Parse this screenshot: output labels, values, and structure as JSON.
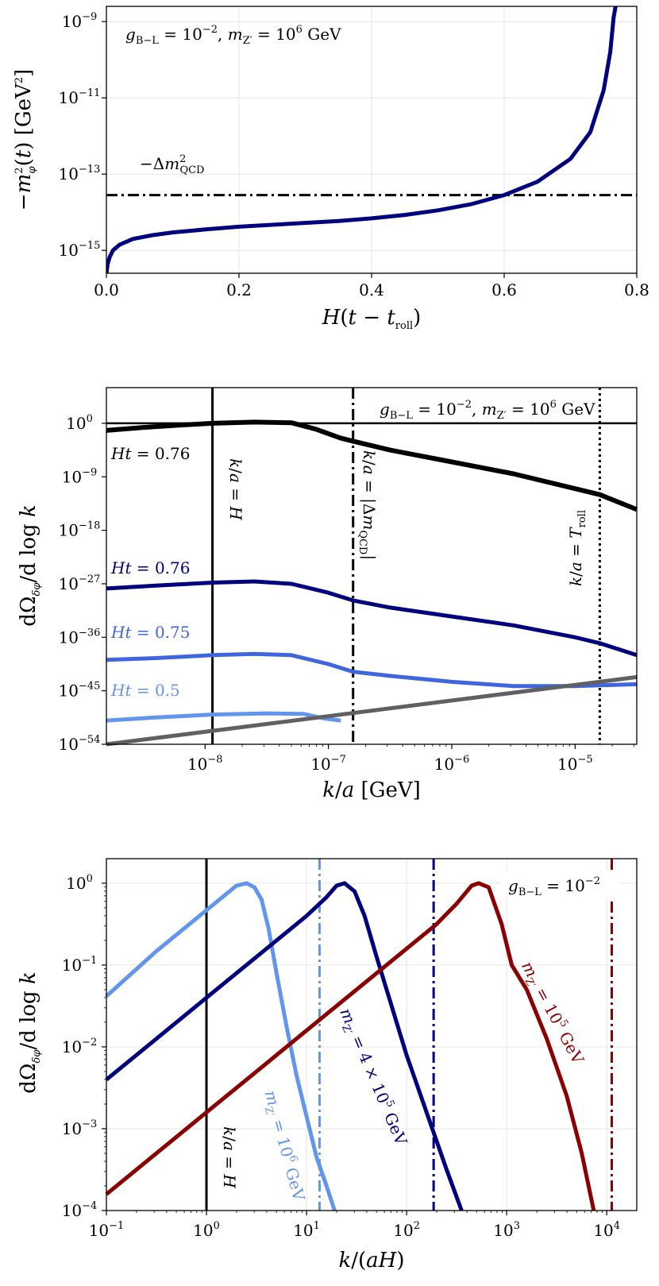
{
  "chart_data": [
    {
      "type": "line",
      "xlabel": "H(t − t_roll)",
      "ylabel": "−m²_φ(t) [GeV²]",
      "yscale": "log",
      "xlim": [
        0.0,
        0.8
      ],
      "ylim_exp": [
        -15.6,
        -8.6
      ],
      "x_ticks": [
        "0.0",
        "0.2",
        "0.4",
        "0.6",
        "0.8"
      ],
      "x_tick_values": [
        0.0,
        0.2,
        0.4,
        0.6,
        0.8
      ],
      "y_ticks": [
        {
          "base": "10",
          "exp": "−9",
          "value": -9
        },
        {
          "base": "10",
          "exp": "−11",
          "value": -11
        },
        {
          "base": "10",
          "exp": "−13",
          "value": -13
        },
        {
          "base": "10",
          "exp": "−15",
          "value": -15
        }
      ],
      "annotation_params": "g_{B−L} = 10^{−2}, m_{Z′} = 10^6 GeV",
      "annotation_line": "−Δm²_QCD",
      "grid": true,
      "hline": {
        "y_exp": -13.55,
        "style": "dashdot",
        "color": "#000000"
      },
      "series": [
        {
          "color": "#00007f",
          "points": [
            [
              0.0,
              -15.6
            ],
            [
              0.002,
              -15.35
            ],
            [
              0.005,
              -15.17
            ],
            [
              0.01,
              -15.0
            ],
            [
              0.02,
              -14.85
            ],
            [
              0.04,
              -14.7
            ],
            [
              0.07,
              -14.6
            ],
            [
              0.1,
              -14.53
            ],
            [
              0.15,
              -14.45
            ],
            [
              0.2,
              -14.38
            ],
            [
              0.25,
              -14.33
            ],
            [
              0.3,
              -14.28
            ],
            [
              0.35,
              -14.23
            ],
            [
              0.4,
              -14.16
            ],
            [
              0.45,
              -14.07
            ],
            [
              0.5,
              -13.95
            ],
            [
              0.55,
              -13.79
            ],
            [
              0.6,
              -13.55
            ],
            [
              0.65,
              -13.2
            ],
            [
              0.7,
              -12.6
            ],
            [
              0.73,
              -11.9
            ],
            [
              0.75,
              -10.8
            ],
            [
              0.76,
              -9.8
            ],
            [
              0.765,
              -8.9
            ],
            [
              0.768,
              -8.6
            ]
          ]
        }
      ]
    },
    {
      "type": "line",
      "xlabel": "k/a [GeV]",
      "ylabel": "dΩ_δφ/d log k",
      "xscale": "log",
      "yscale": "log",
      "xlim_exp": [
        -8.8,
        -4.5
      ],
      "ylim_exp": [
        -54,
        6
      ],
      "x_ticks": [
        {
          "base": "10",
          "exp": "−8",
          "value": -8
        },
        {
          "base": "10",
          "exp": "−7",
          "value": -7
        },
        {
          "base": "10",
          "exp": "−6",
          "value": -6
        },
        {
          "base": "10",
          "exp": "−5",
          "value": -5
        }
      ],
      "y_ticks": [
        {
          "base": "10",
          "exp": "0",
          "value": 0
        },
        {
          "base": "10",
          "exp": "−9",
          "value": -9
        },
        {
          "base": "10",
          "exp": "−18",
          "value": -18
        },
        {
          "base": "10",
          "exp": "−27",
          "value": -27
        },
        {
          "base": "10",
          "exp": "−36",
          "value": -36
        },
        {
          "base": "10",
          "exp": "−45",
          "value": -45
        },
        {
          "base": "10",
          "exp": "−54",
          "value": -54
        }
      ],
      "annotation_params": "g_{B−L} = 10^{−2}, m_{Z′} = 10^6 GeV",
      "grid": false,
      "hline": {
        "y_exp": 0,
        "style": "solid",
        "color": "#000000"
      },
      "vlines": [
        {
          "x_exp": -7.94,
          "style": "solid",
          "label": "k/a = H"
        },
        {
          "x_exp": -6.8,
          "style": "dashdot",
          "label": "k/a = |Δm_QCD|"
        },
        {
          "x_exp": -4.8,
          "style": "dotted",
          "label": "k/a = T_roll"
        }
      ],
      "series": [
        {
          "name": "Ht = 0.76",
          "color": "#000000",
          "points": [
            [
              -8.8,
              -1.2
            ],
            [
              -8.5,
              -0.7
            ],
            [
              -8.2,
              -0.3
            ],
            [
              -7.94,
              0.0
            ],
            [
              -7.6,
              0.2
            ],
            [
              -7.3,
              0.1
            ],
            [
              -7.1,
              -1.0
            ],
            [
              -6.9,
              -2.5
            ],
            [
              -6.8,
              -3.0
            ],
            [
              -6.5,
              -4.5
            ],
            [
              -6.0,
              -6.5
            ],
            [
              -5.5,
              -8.5
            ],
            [
              -5.0,
              -11.0
            ],
            [
              -4.8,
              -12.0
            ],
            [
              -4.5,
              -14.5
            ]
          ]
        },
        {
          "name": "Ht = 0.76",
          "color": "#00007f",
          "points": [
            [
              -8.8,
              -27.8
            ],
            [
              -8.4,
              -27.3
            ],
            [
              -7.94,
              -26.8
            ],
            [
              -7.6,
              -26.6
            ],
            [
              -7.3,
              -27.0
            ],
            [
              -7.0,
              -28.5
            ],
            [
              -6.8,
              -29.8
            ],
            [
              -6.5,
              -31.0
            ],
            [
              -6.0,
              -32.5
            ],
            [
              -5.5,
              -34.0
            ],
            [
              -5.0,
              -36.0
            ],
            [
              -4.8,
              -37.0
            ],
            [
              -4.5,
              -39.0
            ]
          ]
        },
        {
          "name": "Ht = 0.75",
          "color": "#3f66dd",
          "points": [
            [
              -8.8,
              -39.8
            ],
            [
              -8.4,
              -39.5
            ],
            [
              -7.94,
              -39.0
            ],
            [
              -7.6,
              -38.8
            ],
            [
              -7.3,
              -39.0
            ],
            [
              -7.0,
              -40.5
            ],
            [
              -6.8,
              -41.8
            ],
            [
              -6.5,
              -42.5
            ],
            [
              -6.0,
              -43.5
            ],
            [
              -5.5,
              -44.2
            ],
            [
              -5.0,
              -44.2
            ],
            [
              -4.5,
              -43.9
            ]
          ]
        },
        {
          "name": "Ht = 0.5",
          "color": "#6495ed",
          "points": [
            [
              -8.8,
              -50.0
            ],
            [
              -8.4,
              -49.5
            ],
            [
              -7.94,
              -49.0
            ],
            [
              -7.5,
              -48.8
            ],
            [
              -7.2,
              -48.9
            ],
            [
              -7.05,
              -49.6
            ],
            [
              -6.9,
              -50.0
            ]
          ]
        },
        {
          "color": "#606060",
          "points": [
            [
              -8.8,
              -54.0
            ],
            [
              -4.5,
              -42.7
            ]
          ]
        }
      ]
    },
    {
      "type": "line",
      "xlabel": "k/(aH)",
      "ylabel": "dΩ_δφ/d log k",
      "xscale": "log",
      "yscale": "log",
      "xlim_exp": [
        -1,
        4.3
      ],
      "ylim_exp": [
        -4,
        0.3
      ],
      "x_ticks": [
        {
          "base": "10",
          "exp": "−1",
          "value": -1
        },
        {
          "base": "10",
          "exp": "0",
          "value": 0
        },
        {
          "base": "10",
          "exp": "1",
          "value": 1
        },
        {
          "base": "10",
          "exp": "2",
          "value": 2
        },
        {
          "base": "10",
          "exp": "3",
          "value": 3
        },
        {
          "base": "10",
          "exp": "4",
          "value": 4
        }
      ],
      "y_ticks": [
        {
          "base": "10",
          "exp": "0",
          "value": 0
        },
        {
          "base": "10",
          "exp": "−1",
          "value": -1
        },
        {
          "base": "10",
          "exp": "−2",
          "value": -2
        },
        {
          "base": "10",
          "exp": "−3",
          "value": -3
        },
        {
          "base": "10",
          "exp": "−4",
          "value": -4
        }
      ],
      "annotation_params": "g_{B−L} = 10^{−2}",
      "grid": true,
      "vlines": [
        {
          "x_exp": 0.0,
          "style": "solid",
          "color": "#000000",
          "label": "k/a = H"
        },
        {
          "x_exp": 1.13,
          "style": "dashdot",
          "color": "#6495ed"
        },
        {
          "x_exp": 2.27,
          "style": "dashdot",
          "color": "#00007f"
        },
        {
          "x_exp": 4.05,
          "style": "dashdot",
          "color": "#8b0000"
        }
      ],
      "series": [
        {
          "name": "m_{Z′} = 10^6 GeV",
          "color": "#6495ed",
          "points": [
            [
              -1.0,
              -1.38
            ],
            [
              -0.5,
              -0.83
            ],
            [
              0.0,
              -0.33
            ],
            [
              0.2,
              -0.13
            ],
            [
              0.3,
              -0.03
            ],
            [
              0.4,
              0.0
            ],
            [
              0.48,
              -0.05
            ],
            [
              0.55,
              -0.2
            ],
            [
              0.62,
              -0.55
            ],
            [
              0.7,
              -1.1
            ],
            [
              0.8,
              -1.75
            ],
            [
              0.9,
              -2.35
            ],
            [
              1.0,
              -2.85
            ],
            [
              1.1,
              -3.35
            ],
            [
              1.2,
              -3.7
            ],
            [
              1.28,
              -4.0
            ]
          ]
        },
        {
          "name": "m_{Z′} = 4 × 10^5 GeV",
          "color": "#00007f",
          "points": [
            [
              -1.0,
              -2.4
            ],
            [
              -0.5,
              -1.9
            ],
            [
              0.0,
              -1.4
            ],
            [
              0.5,
              -0.9
            ],
            [
              1.0,
              -0.4
            ],
            [
              1.2,
              -0.17
            ],
            [
              1.3,
              -0.03
            ],
            [
              1.38,
              0.0
            ],
            [
              1.48,
              -0.1
            ],
            [
              1.58,
              -0.4
            ],
            [
              1.7,
              -0.9
            ],
            [
              1.85,
              -1.5
            ],
            [
              2.0,
              -2.1
            ],
            [
              2.2,
              -2.8
            ],
            [
              2.4,
              -3.5
            ],
            [
              2.55,
              -4.0
            ]
          ]
        },
        {
          "name": "m_{Z′} = 10^5 GeV",
          "color": "#8b0000",
          "points": [
            [
              -1.0,
              -3.8
            ],
            [
              -0.5,
              -3.3
            ],
            [
              0.0,
              -2.8
            ],
            [
              0.5,
              -2.3
            ],
            [
              1.0,
              -1.8
            ],
            [
              1.5,
              -1.3
            ],
            [
              2.0,
              -0.8
            ],
            [
              2.3,
              -0.5
            ],
            [
              2.5,
              -0.25
            ],
            [
              2.65,
              -0.03
            ],
            [
              2.72,
              0.0
            ],
            [
              2.82,
              -0.05
            ],
            [
              2.95,
              -0.5
            ],
            [
              3.05,
              -1.0
            ],
            [
              3.2,
              -1.3
            ],
            [
              3.4,
              -1.9
            ],
            [
              3.6,
              -2.6
            ],
            [
              3.75,
              -3.3
            ],
            [
              3.87,
              -4.0
            ]
          ]
        }
      ]
    }
  ]
}
